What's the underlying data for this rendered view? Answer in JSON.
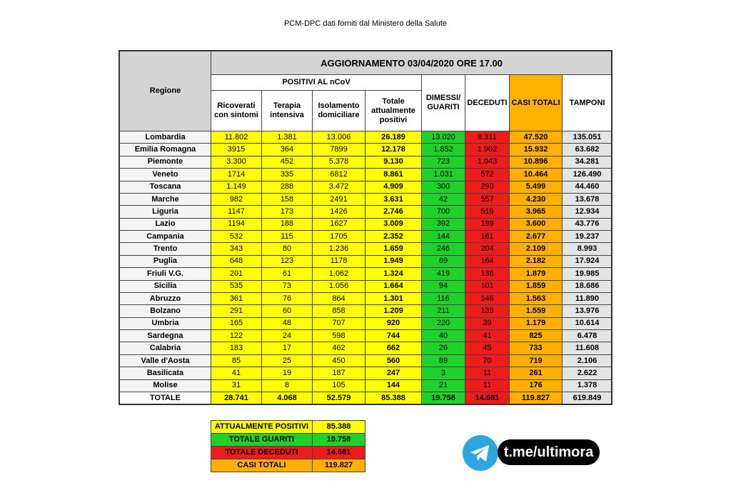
{
  "title": "PCM-DPC dati forniti dal Ministero della Salute",
  "table": {
    "update": "AGGIORNAMENTO 03/04/2020 ORE 17.00",
    "region_header": "Regione",
    "positives_header": "POSITIVI AL nCoV",
    "columns": [
      "Ricoverati con sintomi",
      "Terapia intensiva",
      "Isolamento domiciliare",
      "Totale attualmente positivi",
      "DIMESSI/ GUARITI",
      "DECEDUTI",
      "CASI TOTALI",
      "TAMPONI"
    ],
    "rows": [
      [
        "Lombardia",
        "11.802",
        "1.381",
        "13.006",
        "26.189",
        "13.020",
        "8.311",
        "47.520",
        "135.051"
      ],
      [
        "Emilia Romagna",
        "3915",
        "364",
        "7899",
        "12.178",
        "1.852",
        "1.902",
        "15.932",
        "63.682"
      ],
      [
        "Piemonte",
        "3.300",
        "452",
        "5.378",
        "9.130",
        "723",
        "1.043",
        "10.896",
        "34.281"
      ],
      [
        "Veneto",
        "1714",
        "335",
        "6812",
        "8.861",
        "1.031",
        "572",
        "10.464",
        "126.490"
      ],
      [
        "Toscana",
        "1.149",
        "288",
        "3.472",
        "4.909",
        "300",
        "290",
        "5.499",
        "44.460"
      ],
      [
        "Marche",
        "982",
        "158",
        "2491",
        "3.631",
        "42",
        "557",
        "4.230",
        "13.678"
      ],
      [
        "Liguria",
        "1147",
        "173",
        "1426",
        "2.746",
        "700",
        "519",
        "3.965",
        "12.934"
      ],
      [
        "Lazio",
        "1194",
        "188",
        "1627",
        "3.009",
        "392",
        "199",
        "3.600",
        "43.776"
      ],
      [
        "Campania",
        "532",
        "115",
        "1705",
        "2.352",
        "144",
        "181",
        "2.677",
        "19.237"
      ],
      [
        "Trento",
        "343",
        "80",
        "1.236",
        "1.659",
        "246",
        "204",
        "2.109",
        "8.993"
      ],
      [
        "Puglia",
        "648",
        "123",
        "1178",
        "1.949",
        "69",
        "164",
        "2.182",
        "17.924"
      ],
      [
        "Friuli V.G.",
        "201",
        "61",
        "1.062",
        "1.324",
        "419",
        "136",
        "1.879",
        "19.985"
      ],
      [
        "Sicilia",
        "535",
        "73",
        "1.056",
        "1.664",
        "94",
        "101",
        "1.859",
        "18.686"
      ],
      [
        "Abruzzo",
        "361",
        "76",
        "864",
        "1.301",
        "116",
        "146",
        "1.563",
        "11.890"
      ],
      [
        "Bolzano",
        "291",
        "60",
        "858",
        "1.209",
        "211",
        "139",
        "1.559",
        "13.976"
      ],
      [
        "Umbria",
        "165",
        "48",
        "707",
        "920",
        "220",
        "39",
        "1.179",
        "10.614"
      ],
      [
        "Sardegna",
        "122",
        "24",
        "598",
        "744",
        "40",
        "41",
        "825",
        "6.478"
      ],
      [
        "Calabria",
        "183",
        "17",
        "462",
        "662",
        "26",
        "45",
        "733",
        "11.608"
      ],
      [
        "Valle d'Aosta",
        "85",
        "25",
        "450",
        "560",
        "89",
        "70",
        "719",
        "2.106"
      ],
      [
        "Basilicata",
        "41",
        "19",
        "187",
        "247",
        "3",
        "11",
        "261",
        "2.622"
      ],
      [
        "Molise",
        "31",
        "8",
        "105",
        "144",
        "21",
        "11",
        "176",
        "1.378"
      ]
    ],
    "total": [
      "TOTALE",
      "28.741",
      "4.068",
      "52.579",
      "85.388",
      "19.758",
      "14.681",
      "119.827",
      "619.849"
    ]
  },
  "summary": {
    "rows": [
      [
        "ATTUALMENTE POSITIVI",
        "85.388"
      ],
      [
        "TOTALE GUARITI",
        "19.758"
      ],
      [
        "TOTALE DECEDUTI",
        "14.681"
      ],
      [
        "CASI TOTALI",
        "119.827"
      ]
    ]
  },
  "link": "t.me/ultimora"
}
